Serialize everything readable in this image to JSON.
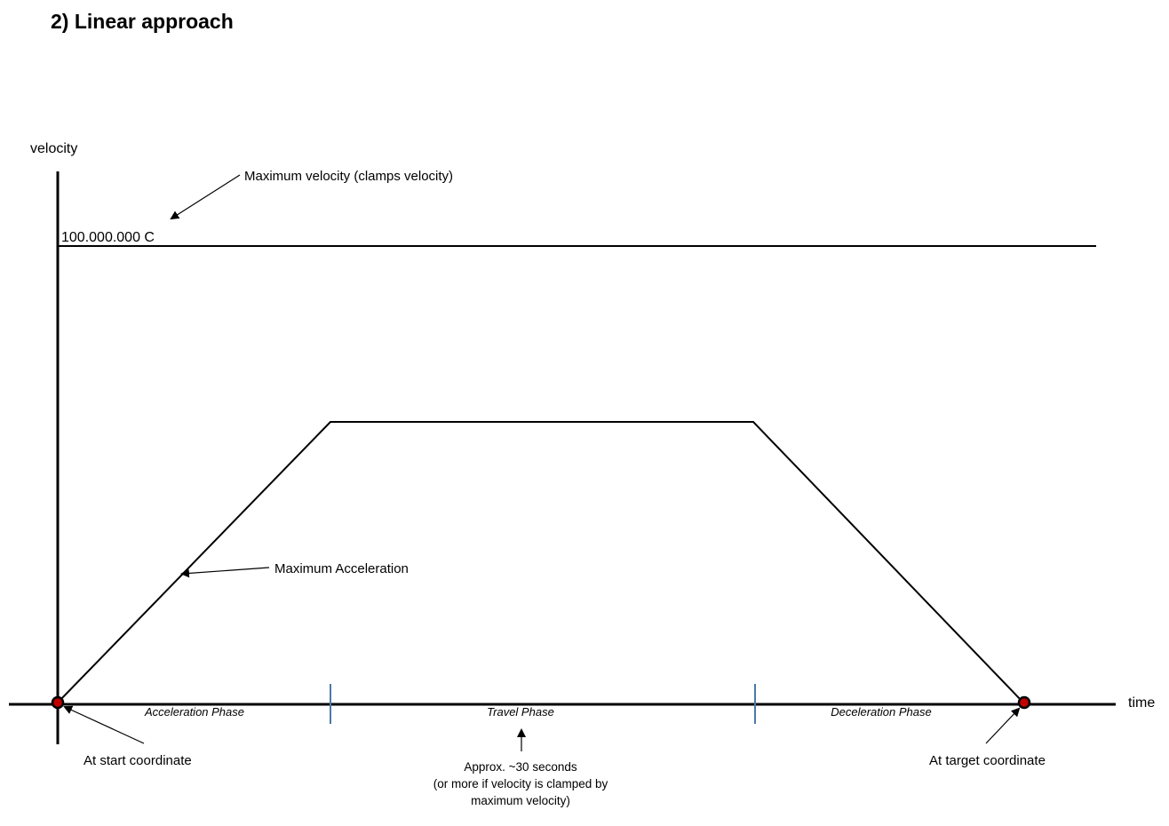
{
  "title": "2) Linear approach",
  "axes": {
    "y_label": "velocity",
    "x_label": "time"
  },
  "max_velocity": {
    "value_label": "100.000.000 C",
    "annotation": "Maximum velocity (clamps velocity)"
  },
  "annotations": {
    "max_acceleration": "Maximum Acceleration",
    "start": "At start coordinate",
    "target": "At target coordinate"
  },
  "phases": {
    "acceleration": "Acceleration Phase",
    "travel": "Travel Phase",
    "deceleration": "Deceleration Phase"
  },
  "travel_note": {
    "line1": "Approx. ~30 seconds",
    "line2": "(or more if velocity is clamped by",
    "line3": "maximum velocity)"
  },
  "colors": {
    "line": "#000000",
    "point_fill": "#c00000",
    "phase_divider": "#4a7aa8"
  }
}
